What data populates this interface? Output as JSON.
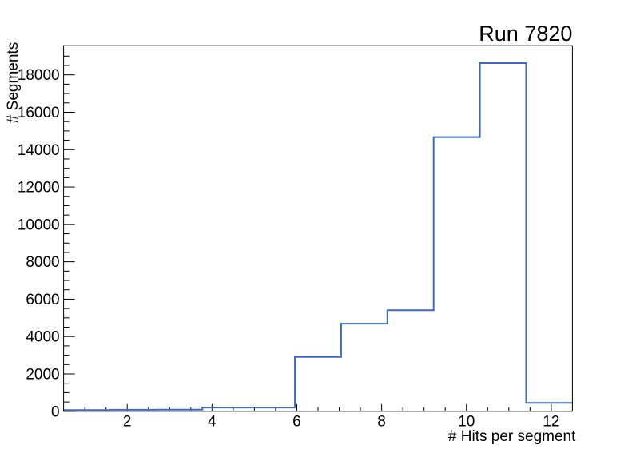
{
  "chart_data": {
    "type": "line",
    "style": "histogram-step-outline",
    "title": "Run 7820",
    "xlabel": "# Hits per segment",
    "ylabel": "# Segments",
    "bin_edges": [
      0.5,
      1.5909,
      2.6818,
      3.7727,
      4.8636,
      5.9545,
      7.0455,
      8.1364,
      9.2273,
      10.3182,
      11.4091,
      12.5
    ],
    "counts": [
      70,
      80,
      90,
      200,
      200,
      2910,
      4690,
      5410,
      14670,
      18630,
      450
    ],
    "xlim": [
      0.5,
      12.5
    ],
    "ylim": [
      0,
      19560
    ],
    "x_major_ticks": [
      2,
      4,
      6,
      8,
      10,
      12
    ],
    "x_major_tick_labels": [
      "2",
      "4",
      "6",
      "8",
      "10",
      "12"
    ],
    "x_minor_step": 0.5,
    "y_major_step": 2000,
    "y_minor_step": 500,
    "y_major_tick_labels": [
      "0",
      "2000",
      "4000",
      "6000",
      "8000",
      "10000",
      "12000",
      "14000",
      "16000",
      "18000"
    ],
    "grid": false,
    "legend": "none",
    "line_color": "#3a69c8",
    "frame_color": "#000000",
    "background_color": "#ffffff"
  },
  "layout_meta": {
    "title_alignment": "right",
    "xlabel_alignment": "right",
    "ylabel_alignment": "top-rotated"
  }
}
